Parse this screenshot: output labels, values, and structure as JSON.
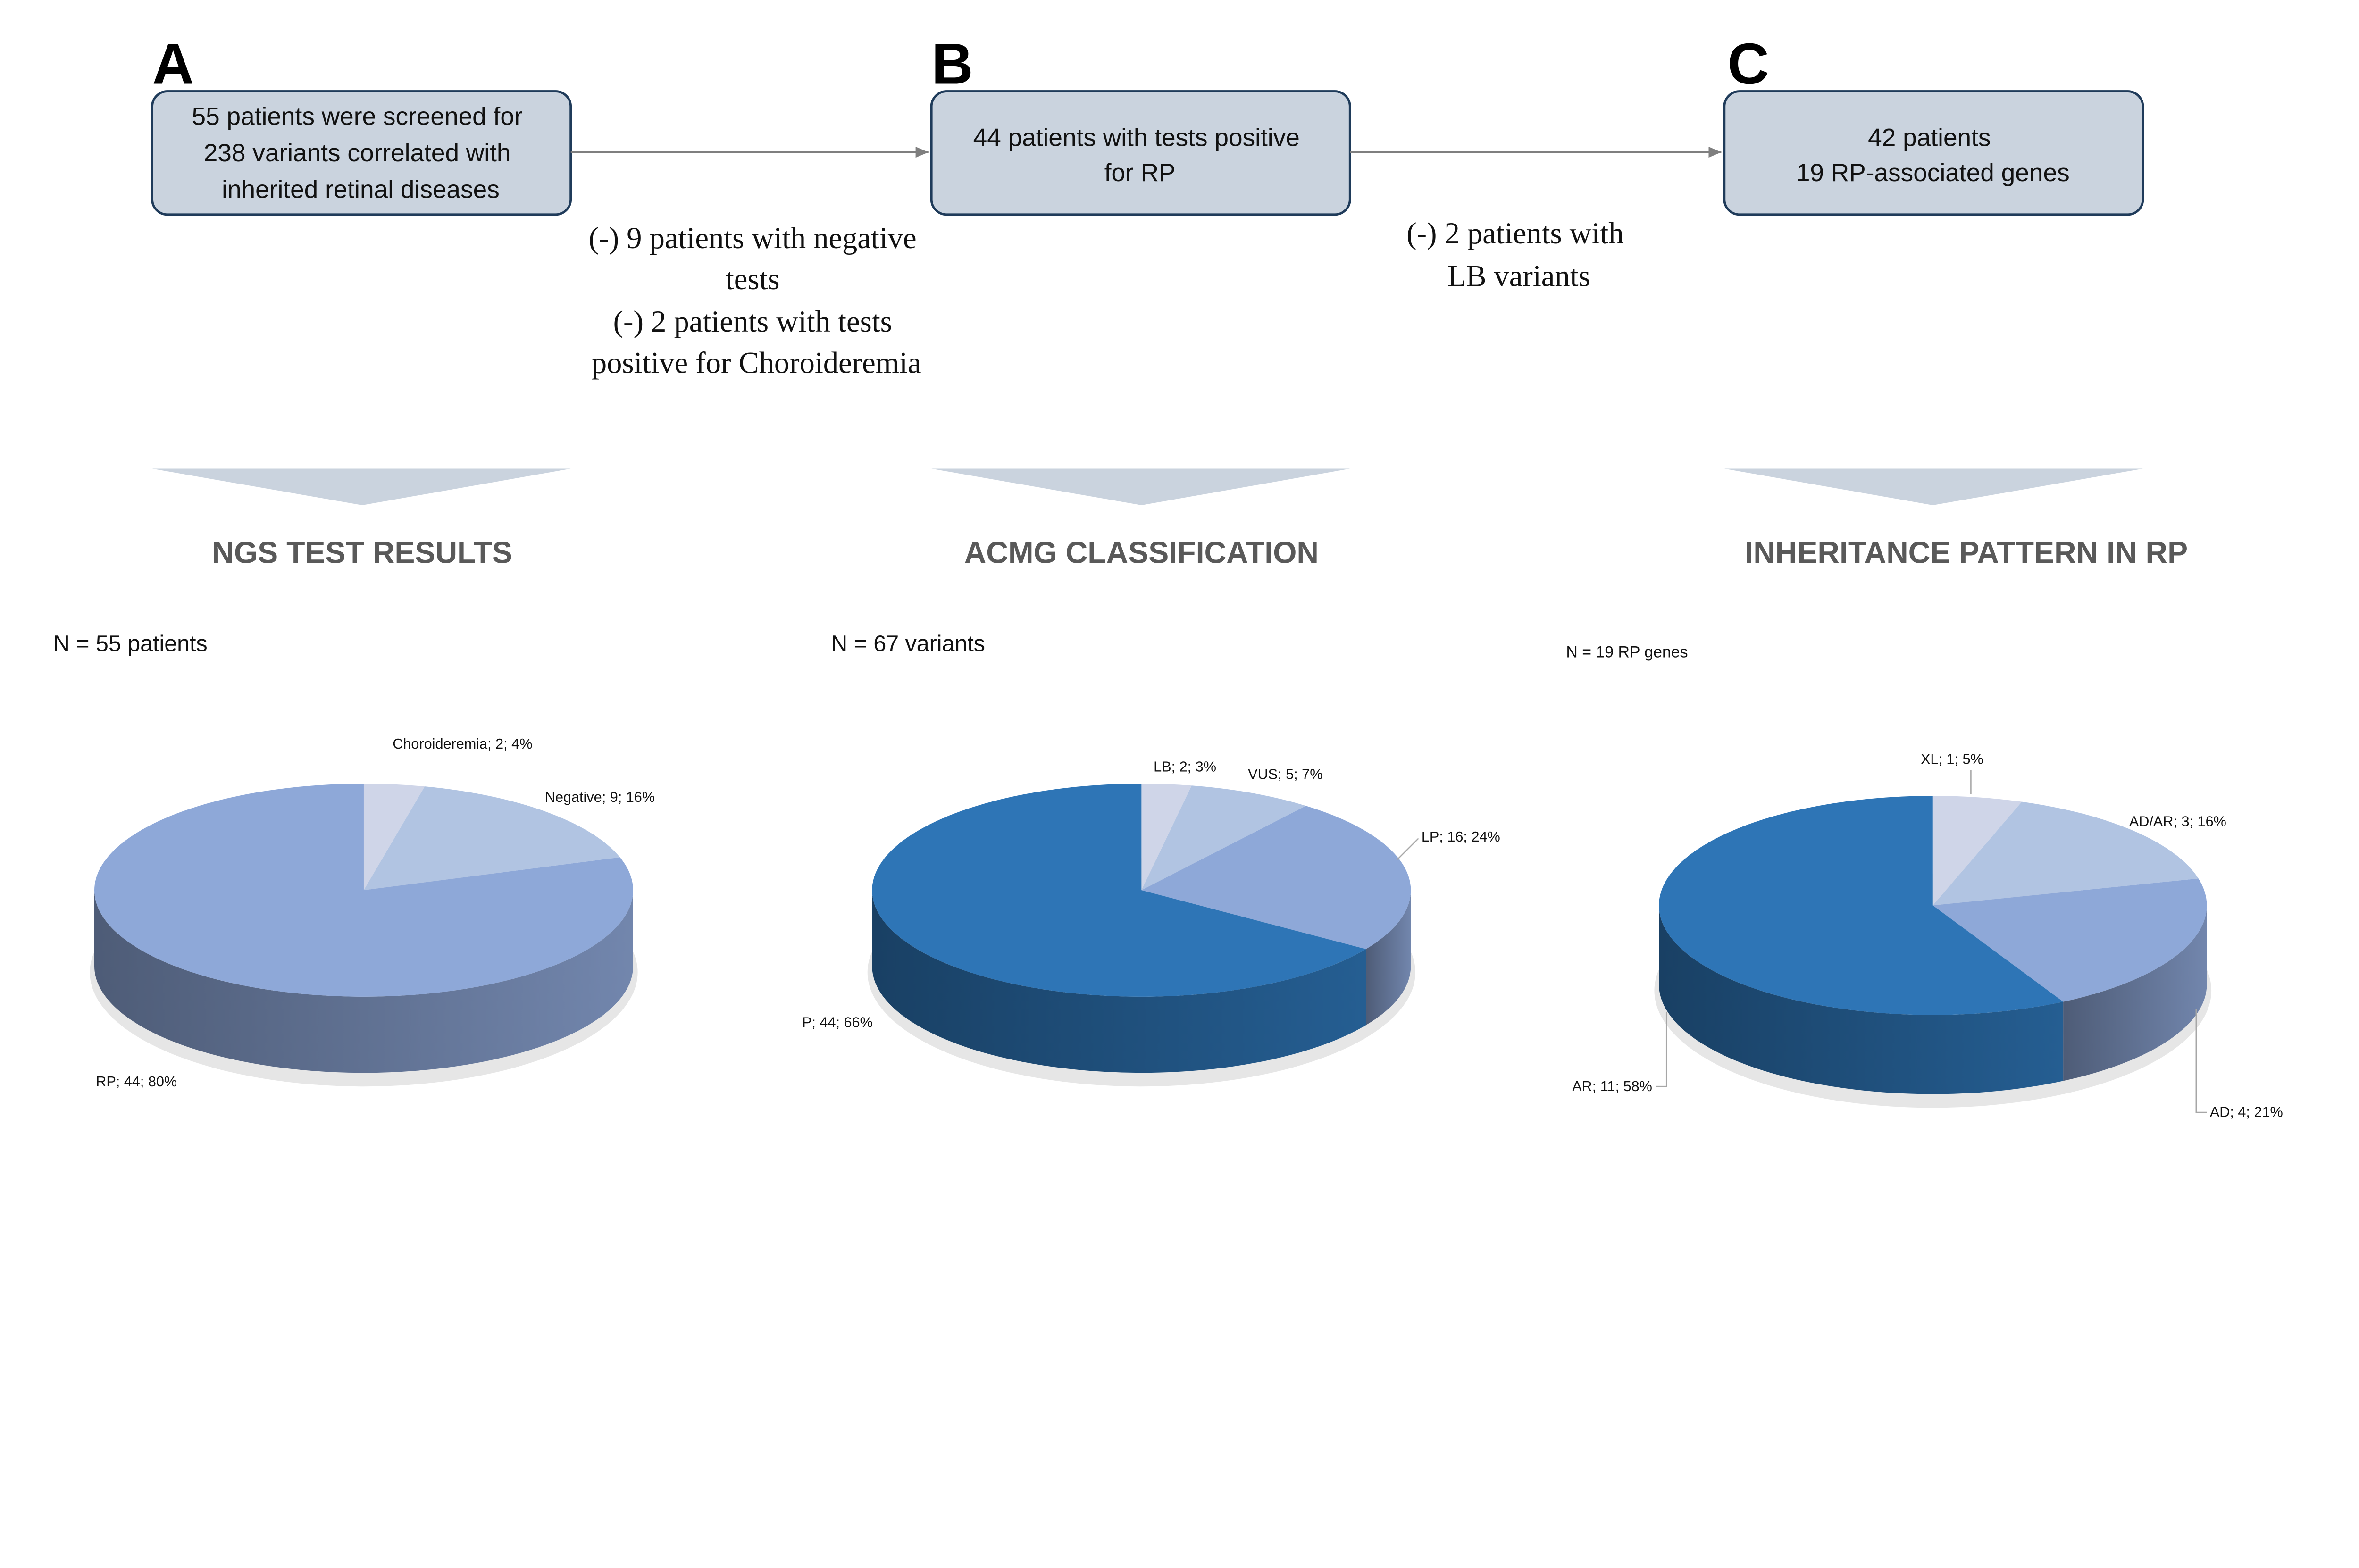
{
  "panels": [
    {
      "letter": "A",
      "box_lines": [
        "55 patients were screened for",
        "238 variants correlated with",
        "inherited retinal diseases"
      ],
      "heading": "NGS TEST RESULTS",
      "n_label": "N = 55 patients"
    },
    {
      "letter": "B",
      "box_lines": [
        "44 patients with tests positive",
        "for RP"
      ],
      "heading": "ACMG CLASSIFICATION",
      "n_label": "N = 67 variants"
    },
    {
      "letter": "C",
      "box_lines": [
        "42 patients",
        "19 RP-associated genes"
      ],
      "heading": "INHERITANCE PATTERN IN RP",
      "n_label": "N = 19 RP  genes"
    }
  ],
  "exclusions": [
    {
      "lines": [
        "(-) 9 patients with negative",
        "tests",
        "(-) 2 patients with tests",
        "positive for Choroideremia"
      ]
    },
    {
      "lines": [
        "(-) 2 patients with",
        "LB variants"
      ]
    }
  ],
  "colors": {
    "box_fill": "#CAD3DE",
    "box_stroke": "#1F3B5A",
    "heading": "#595959"
  },
  "chart_data": [
    {
      "type": "pie",
      "title": "NGS TEST RESULTS",
      "style": "3d",
      "slices": [
        {
          "label": "Choroideremia; 2; 4%",
          "name": "Choroideremia",
          "value": 2,
          "percent": 4,
          "color": "#CFD5E8"
        },
        {
          "label": "Negative; 9; 16%",
          "name": "Negative",
          "value": 9,
          "percent": 16,
          "color": "#B1C4E2"
        },
        {
          "label": "RP; 44; 80%",
          "name": "RP",
          "value": 44,
          "percent": 80,
          "color": "#8EA8D8"
        }
      ]
    },
    {
      "type": "pie",
      "title": "ACMG CLASSIFICATION",
      "style": "3d",
      "slices": [
        {
          "label": "LB; 2; 3%",
          "name": "LB",
          "value": 2,
          "percent": 3,
          "color": "#CFD5E8"
        },
        {
          "label": "VUS; 5; 7%",
          "name": "VUS",
          "value": 5,
          "percent": 7,
          "color": "#B1C4E2"
        },
        {
          "label": "LP; 16; 24%",
          "name": "LP",
          "value": 16,
          "percent": 24,
          "color": "#8EA8D8"
        },
        {
          "label": "P; 44; 66%",
          "name": "P",
          "value": 44,
          "percent": 66,
          "color": "#2E75B6"
        }
      ]
    },
    {
      "type": "pie",
      "title": "INHERITANCE PATTERN IN RP",
      "style": "3d",
      "slices": [
        {
          "label": "XL; 1; 5%",
          "name": "XL",
          "value": 1,
          "percent": 5,
          "color": "#CFD5E8"
        },
        {
          "label": "AD/AR; 3; 16%",
          "name": "AD/AR",
          "value": 3,
          "percent": 16,
          "color": "#B1C4E2"
        },
        {
          "label": "AD; 4; 21%",
          "name": "AD",
          "value": 4,
          "percent": 21,
          "color": "#8EA8D8"
        },
        {
          "label": "AR; 11; 58%",
          "name": "AR",
          "value": 11,
          "percent": 58,
          "color": "#2E75B6"
        }
      ]
    }
  ]
}
